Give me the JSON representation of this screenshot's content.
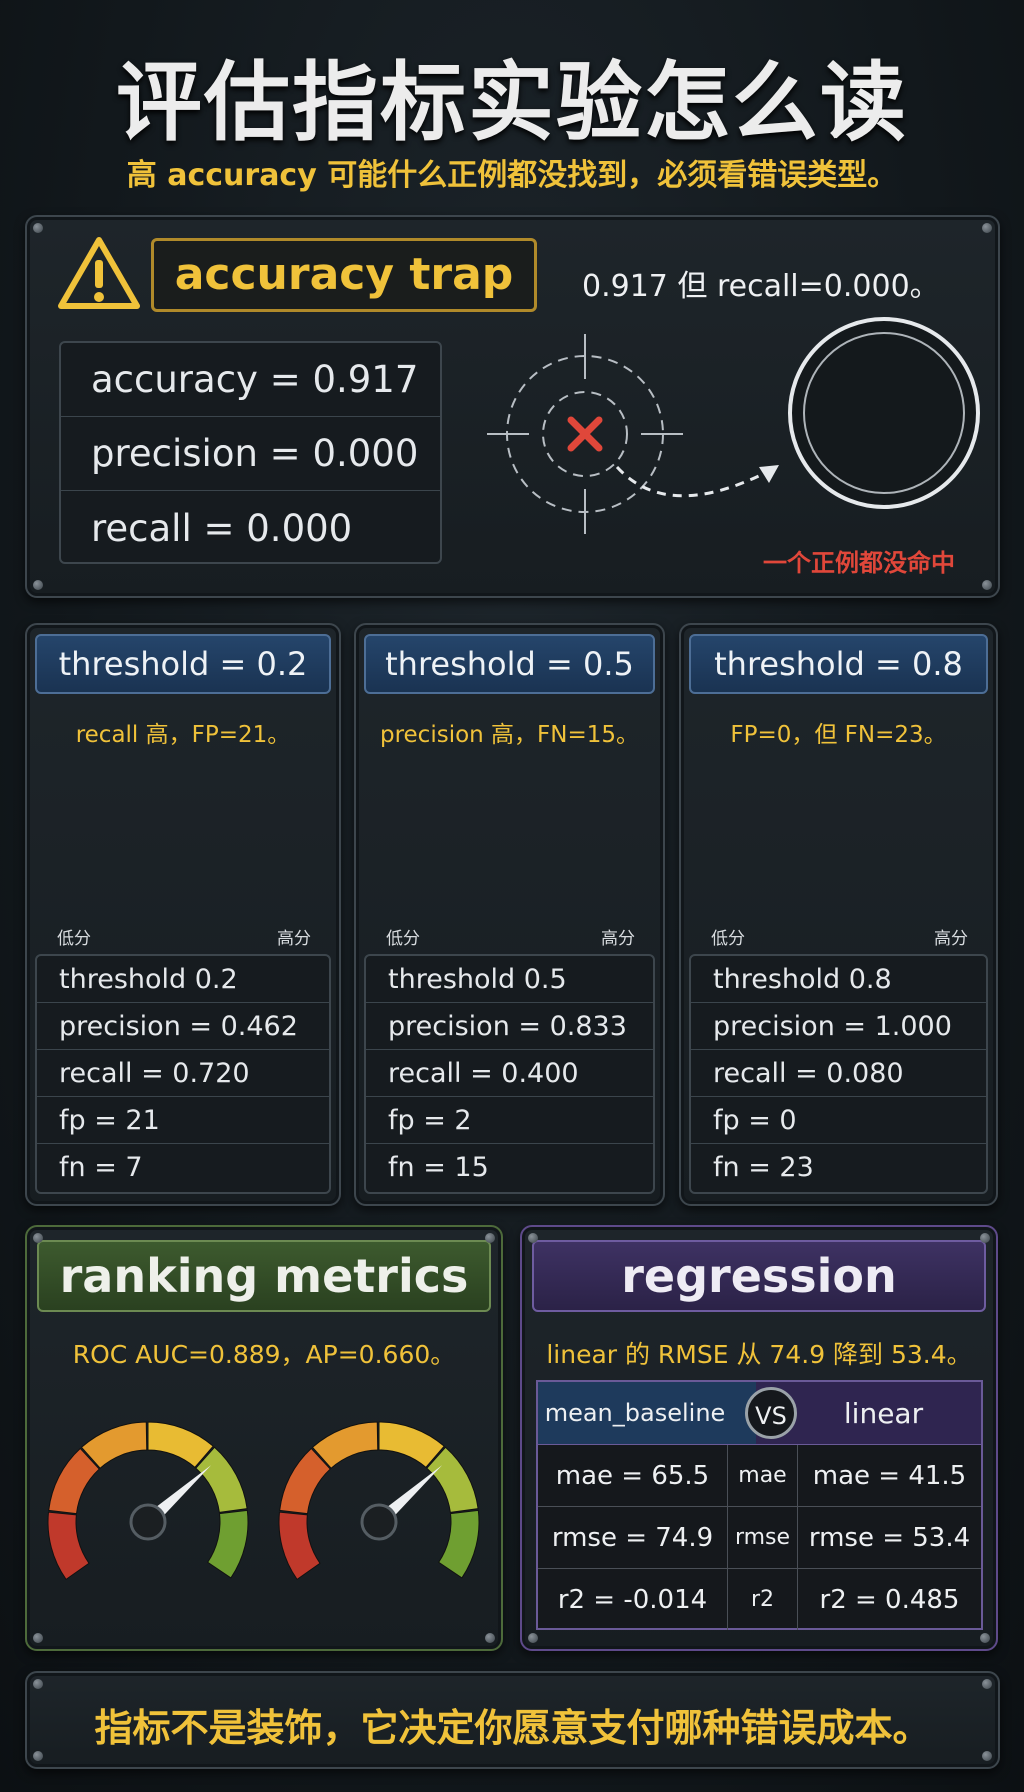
{
  "header": {
    "title": "评估指标实验怎么读",
    "subtitle": "高 accuracy 可能什么正例都没找到，必须看错误类型。"
  },
  "accuracy_trap": {
    "badge": "accuracy trap",
    "note": "0.917 但 recall=0.000。",
    "metrics": [
      "accuracy = 0.917",
      "precision = 0.000",
      "recall = 0.000"
    ],
    "caption": "一个正例都没命中"
  },
  "thresholds": [
    {
      "tab": "threshold = 0.2",
      "note": "recall 高，FP=21。",
      "axis_low": "低分",
      "axis_high": "高分",
      "rows": [
        "threshold 0.2",
        "precision = 0.462",
        "recall = 0.720",
        "fp = 21",
        "fn = 7"
      ]
    },
    {
      "tab": "threshold = 0.5",
      "note": "precision 高，FN=15。",
      "axis_low": "低分",
      "axis_high": "高分",
      "rows": [
        "threshold 0.5",
        "precision = 0.833",
        "recall = 0.400",
        "fp = 2",
        "fn = 15"
      ]
    },
    {
      "tab": "threshold = 0.8",
      "note": "FP=0，但 FN=23。",
      "axis_low": "低分",
      "axis_high": "高分",
      "rows": [
        "threshold 0.8",
        "precision = 1.000",
        "recall = 0.080",
        "fp = 0",
        "fn = 23"
      ]
    }
  ],
  "ranking": {
    "title": "ranking metrics",
    "note": "ROC AUC=0.889，AP=0.660。"
  },
  "regression": {
    "title": "regression",
    "note": "linear 的 RMSE 从 74.9 降到 53.4。",
    "header": [
      "mean_baseline",
      "VS",
      "linear"
    ],
    "rows": [
      [
        "mae = 65.5",
        "mae",
        "mae = 41.5"
      ],
      [
        "rmse = 74.9",
        "rmse",
        "rmse = 53.4"
      ],
      [
        "r2 = -0.014",
        "r2",
        "r2 = 0.485"
      ]
    ]
  },
  "footer": "指标不是装饰，它决定你愿意支付哪种错误成本。"
}
